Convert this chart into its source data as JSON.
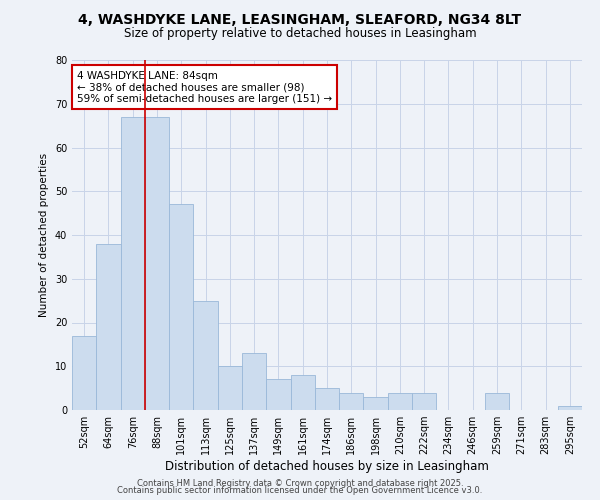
{
  "title": "4, WASHDYKE LANE, LEASINGHAM, SLEAFORD, NG34 8LT",
  "subtitle": "Size of property relative to detached houses in Leasingham",
  "xlabel": "Distribution of detached houses by size in Leasingham",
  "ylabel": "Number of detached properties",
  "bar_values": [
    17,
    38,
    67,
    67,
    47,
    25,
    10,
    13,
    7,
    8,
    5,
    4,
    3,
    4,
    4,
    0,
    0,
    4,
    0,
    0,
    1
  ],
  "bar_labels": [
    "52sqm",
    "64sqm",
    "76sqm",
    "88sqm",
    "101sqm",
    "113sqm",
    "125sqm",
    "137sqm",
    "149sqm",
    "161sqm",
    "174sqm",
    "186sqm",
    "198sqm",
    "210sqm",
    "222sqm",
    "234sqm",
    "246sqm",
    "259sqm",
    "271sqm",
    "283sqm",
    "295sqm"
  ],
  "bar_color": "#ccdcee",
  "bar_edge_color": "#9ab8d8",
  "grid_color": "#c8d4e8",
  "background_color": "#eef2f8",
  "vline_color": "#cc0000",
  "annotation_text": "4 WASHDYKE LANE: 84sqm\n← 38% of detached houses are smaller (98)\n59% of semi-detached houses are larger (151) →",
  "annotation_box_color": "#ffffff",
  "annotation_box_edge_color": "#cc0000",
  "ylim": [
    0,
    80
  ],
  "yticks": [
    0,
    10,
    20,
    30,
    40,
    50,
    60,
    70,
    80
  ],
  "footer_line1": "Contains HM Land Registry data © Crown copyright and database right 2025.",
  "footer_line2": "Contains public sector information licensed under the Open Government Licence v3.0.",
  "title_fontsize": 10,
  "subtitle_fontsize": 8.5,
  "xlabel_fontsize": 8.5,
  "ylabel_fontsize": 7.5,
  "tick_fontsize": 7,
  "annotation_fontsize": 7.5,
  "footer_fontsize": 6
}
